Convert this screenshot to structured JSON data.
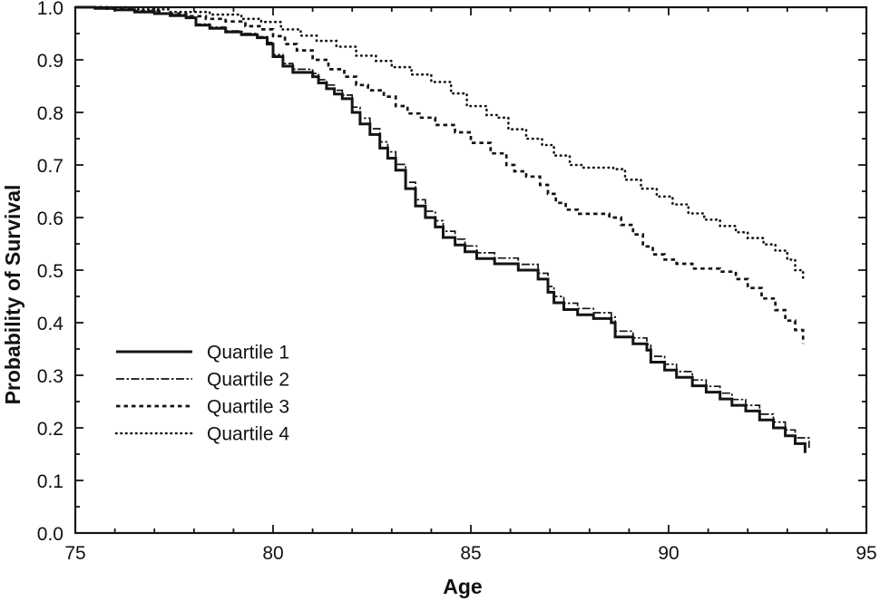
{
  "figure": {
    "background": "#ffffff",
    "ink_color": "#141414"
  },
  "chart_data": {
    "type": "line",
    "subtype": "kaplan-meier-step",
    "title": "",
    "xlabel": "Age",
    "ylabel": "Probability of Survival",
    "xlim": [
      75,
      95
    ],
    "ylim": [
      0.0,
      1.0
    ],
    "grid": false,
    "frame": "full-box",
    "tick_direction": "in",
    "x_minor_step": 1,
    "y_minor_step": 0.05,
    "x_ticks": [
      {
        "value": 75,
        "label": "75"
      },
      {
        "value": 80,
        "label": "80"
      },
      {
        "value": 85,
        "label": "85"
      },
      {
        "value": 90,
        "label": "90"
      },
      {
        "value": 95,
        "label": "95"
      }
    ],
    "y_ticks": [
      {
        "value": 0.0,
        "label": "0.0"
      },
      {
        "value": 0.1,
        "label": "0.1"
      },
      {
        "value": 0.2,
        "label": "0.2"
      },
      {
        "value": 0.3,
        "label": "0.3"
      },
      {
        "value": 0.4,
        "label": "0.4"
      },
      {
        "value": 0.5,
        "label": "0.5"
      },
      {
        "value": 0.6,
        "label": "0.6"
      },
      {
        "value": 0.7,
        "label": "0.7"
      },
      {
        "value": 0.8,
        "label": "0.8"
      },
      {
        "value": 0.9,
        "label": "0.9"
      },
      {
        "value": 1.0,
        "label": "1.0"
      }
    ],
    "legend_position": "inside-left-middle",
    "series": [
      {
        "name": "Quartile 1",
        "line_style": "solid",
        "points": [
          [
            75,
            1.0
          ],
          [
            75.5,
            0.998
          ],
          [
            76,
            0.995
          ],
          [
            76.5,
            0.991
          ],
          [
            77,
            0.988
          ],
          [
            77.4,
            0.984
          ],
          [
            77.8,
            0.98
          ],
          [
            78.05,
            0.966
          ],
          [
            78.4,
            0.96
          ],
          [
            78.8,
            0.953
          ],
          [
            79.2,
            0.948
          ],
          [
            79.6,
            0.942
          ],
          [
            79.85,
            0.93
          ],
          [
            80.0,
            0.906
          ],
          [
            80.25,
            0.888
          ],
          [
            80.5,
            0.876
          ],
          [
            81.0,
            0.868
          ],
          [
            81.15,
            0.856
          ],
          [
            81.35,
            0.845
          ],
          [
            81.55,
            0.835
          ],
          [
            81.75,
            0.826
          ],
          [
            82.0,
            0.8
          ],
          [
            82.2,
            0.778
          ],
          [
            82.45,
            0.758
          ],
          [
            82.7,
            0.732
          ],
          [
            82.9,
            0.713
          ],
          [
            83.1,
            0.69
          ],
          [
            83.35,
            0.655
          ],
          [
            83.6,
            0.622
          ],
          [
            83.85,
            0.6
          ],
          [
            84.1,
            0.582
          ],
          [
            84.3,
            0.562
          ],
          [
            84.6,
            0.548
          ],
          [
            84.85,
            0.535
          ],
          [
            85.15,
            0.522
          ],
          [
            85.6,
            0.512
          ],
          [
            86.2,
            0.5
          ],
          [
            86.7,
            0.483
          ],
          [
            86.95,
            0.458
          ],
          [
            87.1,
            0.438
          ],
          [
            87.35,
            0.425
          ],
          [
            87.7,
            0.415
          ],
          [
            88.1,
            0.408
          ],
          [
            88.55,
            0.4
          ],
          [
            88.65,
            0.373
          ],
          [
            89.1,
            0.36
          ],
          [
            89.45,
            0.348
          ],
          [
            89.55,
            0.325
          ],
          [
            89.9,
            0.31
          ],
          [
            90.2,
            0.296
          ],
          [
            90.6,
            0.28
          ],
          [
            90.95,
            0.268
          ],
          [
            91.3,
            0.255
          ],
          [
            91.6,
            0.243
          ],
          [
            91.95,
            0.232
          ],
          [
            92.3,
            0.215
          ],
          [
            92.65,
            0.2
          ],
          [
            92.95,
            0.185
          ],
          [
            93.2,
            0.17
          ],
          [
            93.45,
            0.152
          ]
        ]
      },
      {
        "name": "Quartile 2",
        "line_style": "dash-dot",
        "points": [
          [
            75,
            1.0
          ],
          [
            75.5,
            0.999
          ],
          [
            76,
            0.996
          ],
          [
            76.5,
            0.992
          ],
          [
            77,
            0.989
          ],
          [
            77.4,
            0.986
          ],
          [
            77.8,
            0.982
          ],
          [
            78.05,
            0.968
          ],
          [
            78.4,
            0.962
          ],
          [
            78.8,
            0.955
          ],
          [
            79.2,
            0.95
          ],
          [
            79.6,
            0.944
          ],
          [
            79.85,
            0.933
          ],
          [
            80.0,
            0.91
          ],
          [
            80.25,
            0.893
          ],
          [
            80.5,
            0.882
          ],
          [
            81.0,
            0.874
          ],
          [
            81.15,
            0.862
          ],
          [
            81.35,
            0.852
          ],
          [
            81.55,
            0.842
          ],
          [
            81.75,
            0.833
          ],
          [
            82.0,
            0.81
          ],
          [
            82.2,
            0.789
          ],
          [
            82.45,
            0.769
          ],
          [
            82.7,
            0.744
          ],
          [
            82.9,
            0.725
          ],
          [
            83.1,
            0.701
          ],
          [
            83.35,
            0.667
          ],
          [
            83.6,
            0.634
          ],
          [
            83.85,
            0.612
          ],
          [
            84.1,
            0.594
          ],
          [
            84.3,
            0.574
          ],
          [
            84.6,
            0.559
          ],
          [
            84.85,
            0.546
          ],
          [
            85.15,
            0.533
          ],
          [
            85.6,
            0.523
          ],
          [
            86.2,
            0.511
          ],
          [
            86.7,
            0.494
          ],
          [
            86.95,
            0.469
          ],
          [
            87.1,
            0.45
          ],
          [
            87.35,
            0.437
          ],
          [
            87.7,
            0.427
          ],
          [
            88.1,
            0.419
          ],
          [
            88.55,
            0.411
          ],
          [
            88.65,
            0.384
          ],
          [
            89.1,
            0.371
          ],
          [
            89.45,
            0.359
          ],
          [
            89.55,
            0.336
          ],
          [
            89.9,
            0.321
          ],
          [
            90.2,
            0.307
          ],
          [
            90.6,
            0.291
          ],
          [
            90.95,
            0.279
          ],
          [
            91.3,
            0.266
          ],
          [
            91.6,
            0.254
          ],
          [
            91.95,
            0.243
          ],
          [
            92.3,
            0.226
          ],
          [
            92.65,
            0.211
          ],
          [
            92.95,
            0.196
          ],
          [
            93.2,
            0.181
          ],
          [
            93.55,
            0.162
          ]
        ]
      },
      {
        "name": "Quartile 3",
        "line_style": "dashed",
        "points": [
          [
            75,
            1.0
          ],
          [
            75.8,
            0.997
          ],
          [
            76.5,
            0.993
          ],
          [
            77.2,
            0.988
          ],
          [
            77.8,
            0.983
          ],
          [
            78.3,
            0.978
          ],
          [
            78.8,
            0.973
          ],
          [
            79.3,
            0.964
          ],
          [
            79.7,
            0.958
          ],
          [
            80.0,
            0.945
          ],
          [
            80.3,
            0.93
          ],
          [
            80.6,
            0.918
          ],
          [
            81.0,
            0.9
          ],
          [
            81.4,
            0.882
          ],
          [
            81.8,
            0.868
          ],
          [
            82.1,
            0.852
          ],
          [
            82.4,
            0.842
          ],
          [
            82.8,
            0.83
          ],
          [
            83.1,
            0.812
          ],
          [
            83.4,
            0.798
          ],
          [
            83.7,
            0.79
          ],
          [
            84.1,
            0.776
          ],
          [
            84.6,
            0.762
          ],
          [
            85.0,
            0.742
          ],
          [
            85.5,
            0.722
          ],
          [
            85.9,
            0.7
          ],
          [
            86.1,
            0.688
          ],
          [
            86.4,
            0.678
          ],
          [
            86.75,
            0.662
          ],
          [
            86.95,
            0.645
          ],
          [
            87.15,
            0.628
          ],
          [
            87.4,
            0.615
          ],
          [
            87.7,
            0.607
          ],
          [
            88.5,
            0.6
          ],
          [
            88.8,
            0.586
          ],
          [
            89.1,
            0.568
          ],
          [
            89.35,
            0.545
          ],
          [
            89.6,
            0.53
          ],
          [
            89.9,
            0.52
          ],
          [
            90.2,
            0.512
          ],
          [
            90.6,
            0.503
          ],
          [
            91.3,
            0.497
          ],
          [
            91.7,
            0.483
          ],
          [
            92.0,
            0.466
          ],
          [
            92.35,
            0.446
          ],
          [
            92.7,
            0.424
          ],
          [
            92.95,
            0.404
          ],
          [
            93.2,
            0.386
          ],
          [
            93.4,
            0.36
          ]
        ]
      },
      {
        "name": "Quartile 4",
        "line_style": "dotted",
        "points": [
          [
            75,
            1.0
          ],
          [
            76.3,
            0.996
          ],
          [
            77.4,
            0.991
          ],
          [
            78.4,
            0.986
          ],
          [
            79.2,
            0.978
          ],
          [
            79.7,
            0.972
          ],
          [
            80.2,
            0.958
          ],
          [
            80.7,
            0.946
          ],
          [
            81.1,
            0.936
          ],
          [
            81.6,
            0.925
          ],
          [
            82.1,
            0.908
          ],
          [
            82.6,
            0.898
          ],
          [
            83.0,
            0.886
          ],
          [
            83.5,
            0.872
          ],
          [
            84.0,
            0.858
          ],
          [
            84.5,
            0.836
          ],
          [
            84.9,
            0.812
          ],
          [
            85.4,
            0.795
          ],
          [
            85.7,
            0.79
          ],
          [
            85.95,
            0.768
          ],
          [
            86.4,
            0.75
          ],
          [
            86.8,
            0.738
          ],
          [
            87.1,
            0.718
          ],
          [
            87.5,
            0.7
          ],
          [
            87.8,
            0.695
          ],
          [
            88.6,
            0.692
          ],
          [
            88.9,
            0.672
          ],
          [
            89.3,
            0.655
          ],
          [
            89.7,
            0.64
          ],
          [
            90.1,
            0.625
          ],
          [
            90.5,
            0.608
          ],
          [
            90.9,
            0.596
          ],
          [
            91.3,
            0.584
          ],
          [
            91.7,
            0.572
          ],
          [
            92.0,
            0.561
          ],
          [
            92.4,
            0.549
          ],
          [
            92.7,
            0.537
          ],
          [
            93.0,
            0.52
          ],
          [
            93.2,
            0.5
          ],
          [
            93.4,
            0.481
          ]
        ]
      }
    ]
  }
}
